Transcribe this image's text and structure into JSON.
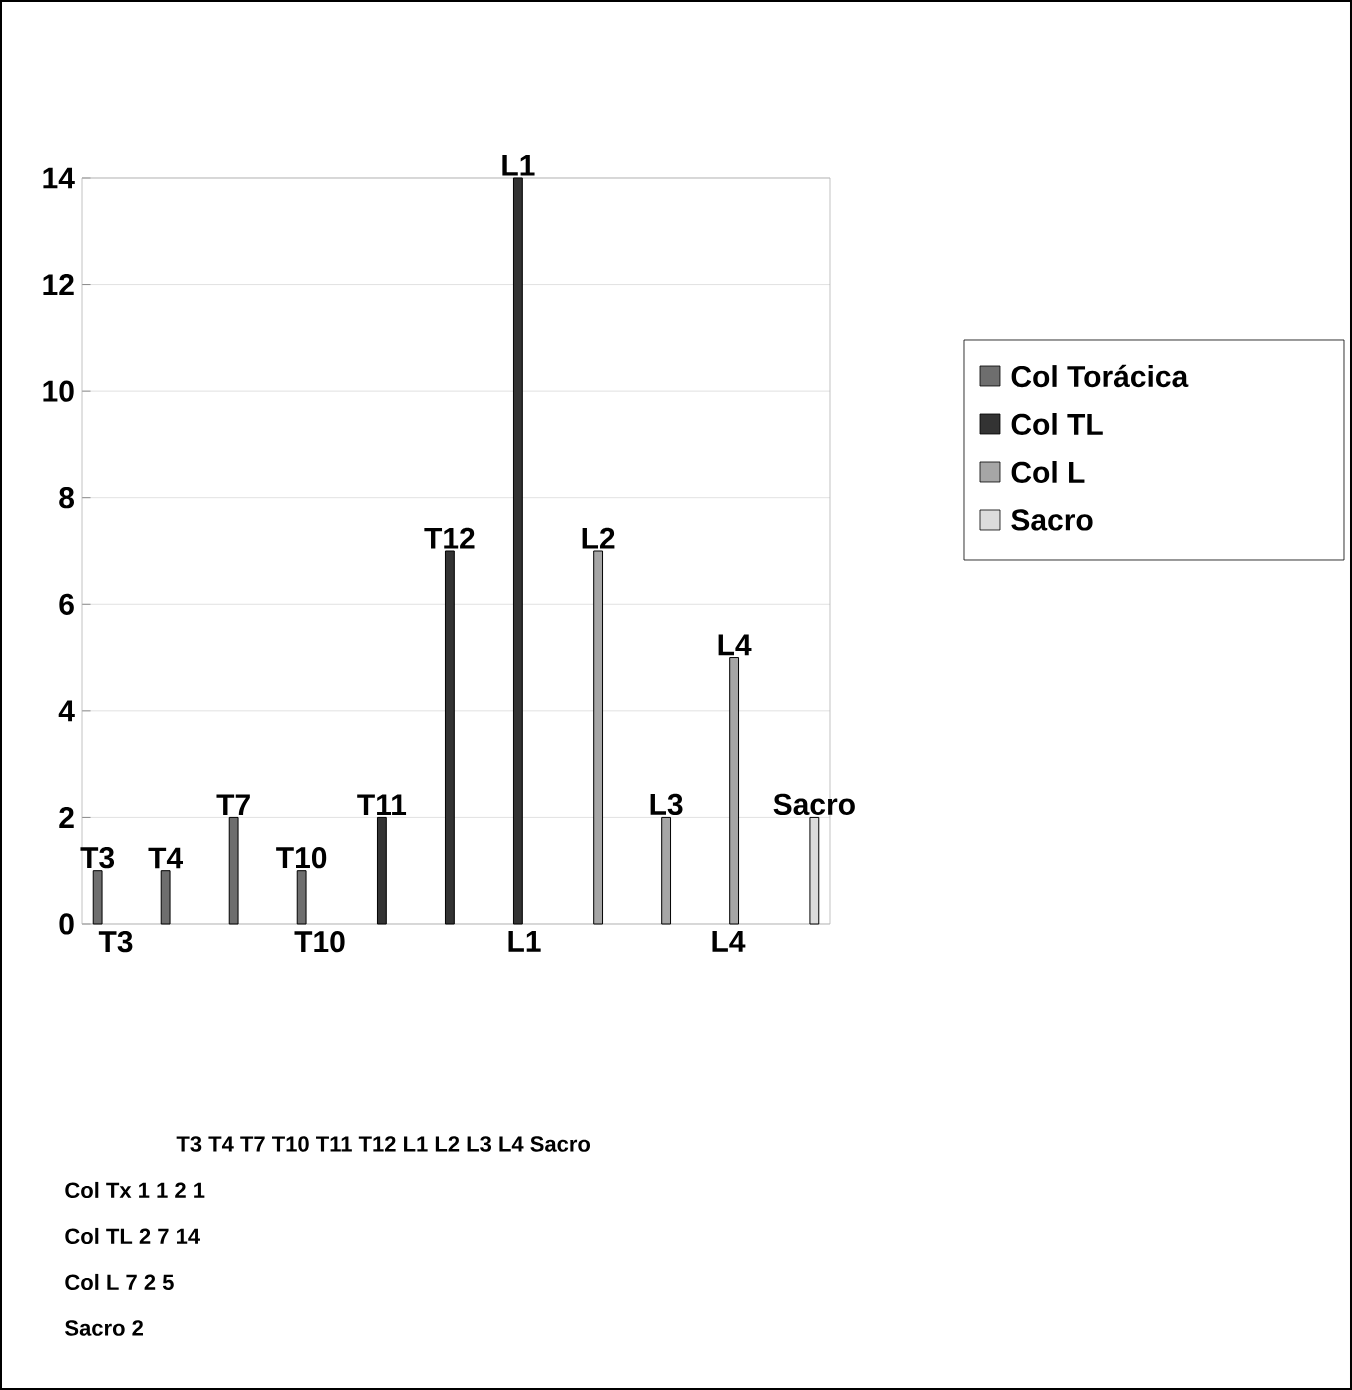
{
  "chart_data": {
    "type": "bar",
    "categories": [
      "T3",
      null,
      null,
      "T10",
      null,
      null,
      "L1",
      null,
      null,
      "L4",
      null
    ],
    "series": [
      {
        "name": "Col Torácica",
        "color": "#6e6e6e",
        "values": [
          1,
          1,
          2,
          1,
          null,
          null,
          null,
          null,
          null,
          null,
          null
        ],
        "value_labels": [
          "T3",
          "T4",
          "T7",
          "T10",
          null,
          null,
          null,
          null,
          null,
          null,
          null
        ]
      },
      {
        "name": "Col TL",
        "color": "#333333",
        "values": [
          null,
          null,
          null,
          null,
          2,
          7,
          14,
          null,
          null,
          null,
          null
        ],
        "value_labels": [
          null,
          null,
          null,
          null,
          "T11",
          "T12",
          "L1",
          null,
          null,
          null,
          null
        ]
      },
      {
        "name": "Col L",
        "color": "#a6a6a6",
        "values": [
          null,
          null,
          null,
          null,
          null,
          null,
          null,
          7,
          2,
          5,
          null
        ],
        "value_labels": [
          null,
          null,
          null,
          null,
          null,
          null,
          null,
          "L2",
          "L3",
          "L4",
          null
        ]
      },
      {
        "name": "Sacro",
        "color": "#dcdcdc",
        "values": [
          null,
          null,
          null,
          null,
          null,
          null,
          null,
          null,
          null,
          null,
          2
        ],
        "value_labels": [
          null,
          null,
          null,
          null,
          null,
          null,
          null,
          null,
          null,
          null,
          "Sacro"
        ]
      }
    ],
    "ylim": [
      0,
      14
    ],
    "yticks": [
      0,
      2,
      4,
      6,
      8,
      10,
      12,
      14
    ],
    "grid": "y",
    "legend": "right",
    "annotations": [
      "T3 T4 T7 T10 T11 T12 L1 L2 L3 L4 Sacro",
      "Col Tx 1 1 2 1",
      "Col TL 2 7 14",
      "Col L 7 2 5",
      "Sacro 2"
    ]
  }
}
